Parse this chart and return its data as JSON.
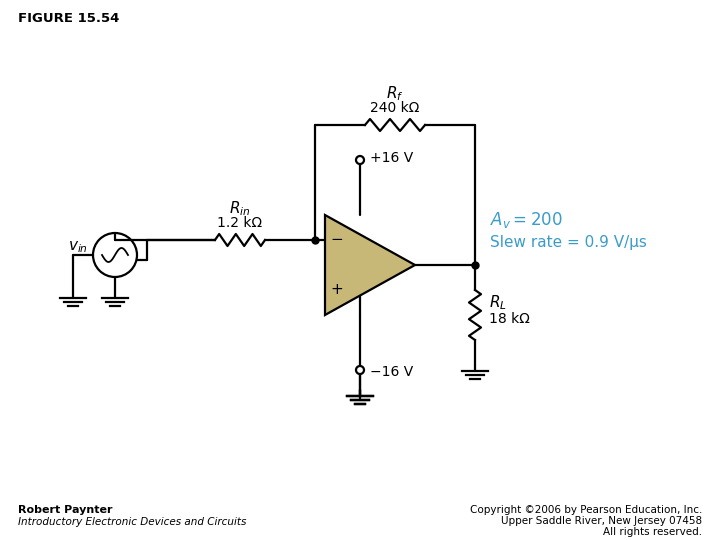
{
  "title": "FIGURE 15.54",
  "bg_color": "#ffffff",
  "line_color": "#000000",
  "opamp_fill": "#c8b878",
  "blue_text": "#3a9cc8",
  "rf_val": "240 kΩ",
  "rin_val": "1.2 kΩ",
  "rl_val": "18 kΩ",
  "vplus": "+16 V",
  "vminus": "−16 V",
  "footer_left1": "Robert Paynter",
  "footer_left2": "Introductory Electronic Devices and Circuits",
  "footer_right1": "Copyright ©2006 by Pearson Education, Inc.",
  "footer_right2": "Upper Saddle River, New Jersey 07458",
  "footer_right3": "All rights reserved."
}
